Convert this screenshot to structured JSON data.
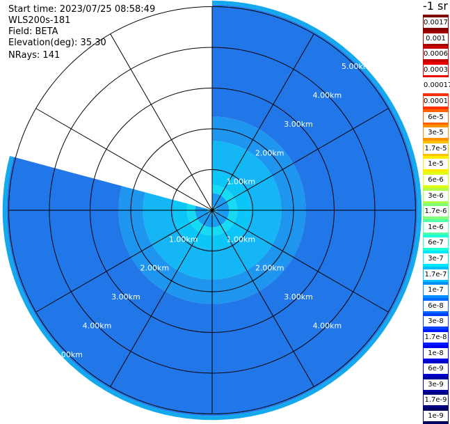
{
  "info": {
    "start_time": "Start time: 2023/07/25 08:58:49",
    "instrument": "WLS200s-181",
    "field": "Field: BETA",
    "elevation": "Elevation(deg): 35.30",
    "nrays": "NRays: 141"
  },
  "colorbar": {
    "title": "-1 sr",
    "labels": [
      "0.0017",
      "0.001",
      "0.0006",
      "0.0003",
      "0.00017",
      "0.0001",
      "6e-5",
      "3e-5",
      "1.7e-5",
      "1e-5",
      "6e-6",
      "3e-6",
      "1.7e-6",
      "1e-6",
      "6e-7",
      "3e-7",
      "1.7e-7",
      "1e-7",
      "6e-8",
      "3e-8",
      "1.7e-8",
      "1e-8",
      "6e-9",
      "3e-9",
      "1.7e-9",
      "1e-9"
    ],
    "colors": [
      "#800000",
      "#a30000",
      "#c70000",
      "#e80000",
      "#ffffff",
      "#ff3000",
      "#ff6000",
      "#ff9000",
      "#ffc000",
      "#ffee00",
      "#e0ff17",
      "#b0ff47",
      "#80ff77",
      "#50ffa7",
      "#20ffd7",
      "#00e8ff",
      "#00c0ff",
      "#0090ff",
      "#0068ff",
      "#0040ff",
      "#0018ff",
      "#0000ee",
      "#0000c8",
      "#0000a0",
      "#000080",
      "#000060"
    ]
  },
  "chart_data": {
    "type": "heatmap",
    "projection": "polar PPI scan",
    "field": "BETA",
    "units": "-1 sr",
    "elevation_deg": 35.3,
    "n_rays": 141,
    "range_rings_km": [
      1.0,
      2.0,
      3.0,
      4.0,
      5.0
    ],
    "ring_labels": [
      "1.00km",
      "2.00km",
      "3.00km",
      "4.00km",
      "5.00km"
    ],
    "data_sector_deg": {
      "start": 0,
      "end": 285,
      "note": "clockwise from north; no data from 285 to 360"
    },
    "scale": "log",
    "value_range": [
      1e-09,
      0.0017
    ],
    "typical_values": {
      "near_center": 1e-07,
      "far_range": 1e-08
    }
  }
}
